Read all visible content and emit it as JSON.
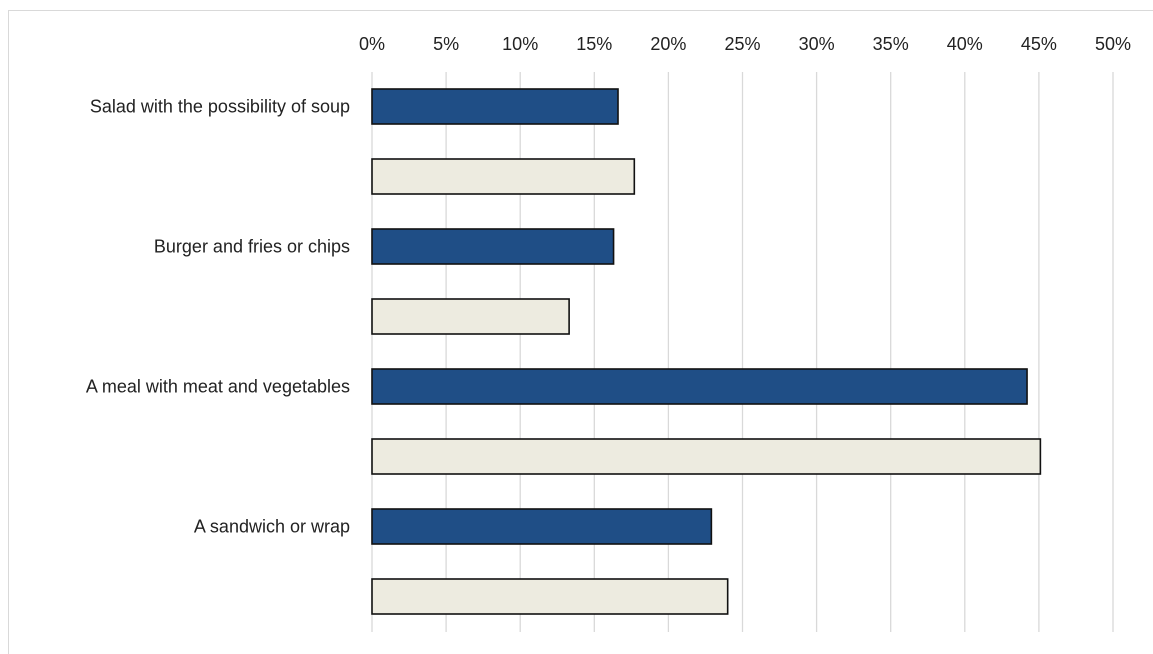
{
  "chart_data": {
    "type": "bar",
    "orientation": "horizontal",
    "title": "",
    "xlabel": "",
    "ylabel": "",
    "xlim": [
      0,
      50
    ],
    "x_ticks": [
      "0%",
      "5%",
      "10%",
      "15%",
      "20%",
      "25%",
      "30%",
      "35%",
      "40%",
      "45%",
      "50%"
    ],
    "x_axis_position": "top",
    "grid": true,
    "legend": "none",
    "categories": [
      "Salad with the possibility of soup",
      "Burger and fries or chips",
      "A meal with meat and vegetables",
      "A sandwich or wrap"
    ],
    "series": [
      {
        "color": "#1f4e86",
        "values": [
          16.6,
          16.3,
          44.2,
          22.9
        ]
      },
      {
        "color": "#edebe0",
        "values": [
          17.7,
          13.3,
          45.1,
          24.0
        ]
      }
    ]
  }
}
